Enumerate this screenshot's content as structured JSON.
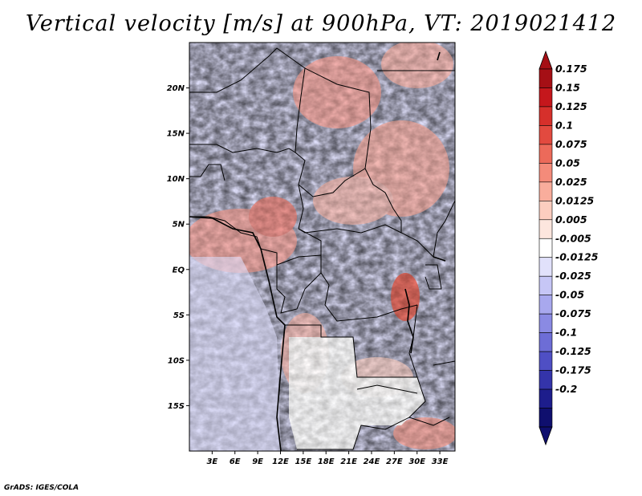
{
  "title": "Vertical velocity [m/s] at 900hPa, VT: 2019021412",
  "credit": "GrADS: IGES/COLA",
  "map": {
    "lon_range": [
      0,
      35
    ],
    "lat_range": [
      -20,
      25
    ],
    "y_ticks": [
      "20N",
      "15N",
      "10N",
      "5N",
      "EQ",
      "5S",
      "10S",
      "15S"
    ],
    "y_tick_values": [
      20,
      15,
      10,
      5,
      0,
      -5,
      -10,
      -15
    ],
    "x_ticks": [
      "3E",
      "6E",
      "9E",
      "12E",
      "15E",
      "18E",
      "21E",
      "24E",
      "27E",
      "30E",
      "33E"
    ],
    "x_tick_values": [
      3,
      6,
      9,
      12,
      15,
      18,
      21,
      24,
      27,
      30,
      33
    ]
  },
  "colorbar": {
    "labels": [
      "0.175",
      "0.15",
      "0.125",
      "0.1",
      "0.075",
      "0.05",
      "0.025",
      "0.0125",
      "0.005",
      "-0.005",
      "-0.0125",
      "-0.025",
      "-0.05",
      "-0.075",
      "-0.1",
      "-0.125",
      "-0.175",
      "-0.2"
    ],
    "colors": [
      "#a50f15",
      "#c5171c",
      "#d6302b",
      "#e24a3f",
      "#ec6a5a",
      "#f48b7a",
      "#f9ad9c",
      "#fccdbf",
      "#fde6de",
      "#ffffff",
      "#e1e1fb",
      "#c6c6f6",
      "#a8a8ee",
      "#8a8ae3",
      "#6d6dd6",
      "#4f4fc4",
      "#3434aa",
      "#1d1d8c",
      "#0f0f6e"
    ],
    "top_color": "#a50f15",
    "bottom_color": "#0f0f6e"
  }
}
